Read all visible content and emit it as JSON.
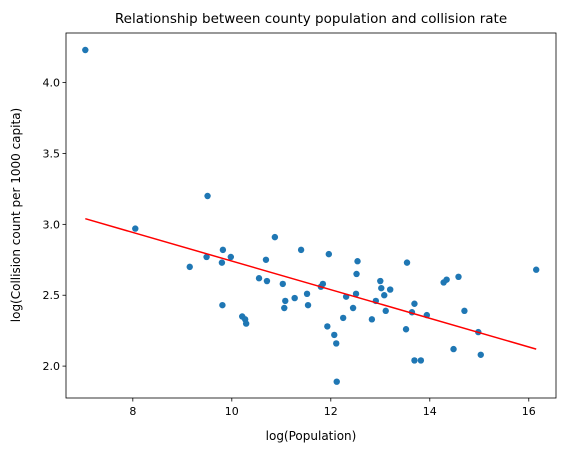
{
  "chart_data": {
    "type": "scatter",
    "title": "Relationship between county population and collision rate",
    "xlabel": "log(Population)",
    "ylabel": "log(Collision count per 1000 capita)",
    "xlim": [
      6.65,
      16.55
    ],
    "ylim": [
      1.775,
      4.35
    ],
    "xticks": [
      8,
      10,
      12,
      14,
      16
    ],
    "yticks": [
      2.0,
      2.5,
      3.0,
      3.5,
      4.0
    ],
    "xtick_labels": [
      "8",
      "10",
      "12",
      "14",
      "16"
    ],
    "ytick_labels": [
      "2.0",
      "2.5",
      "3.0",
      "3.5",
      "4.0"
    ],
    "grid": false,
    "legend": "none",
    "series": [
      {
        "kind": "scatter",
        "color": "#1f77b4",
        "points": [
          [
            7.04,
            4.23
          ],
          [
            8.05,
            2.97
          ],
          [
            9.15,
            2.7
          ],
          [
            9.49,
            2.77
          ],
          [
            9.51,
            3.2
          ],
          [
            9.8,
            2.73
          ],
          [
            9.82,
            2.82
          ],
          [
            9.81,
            2.43
          ],
          [
            9.98,
            2.77
          ],
          [
            10.21,
            2.35
          ],
          [
            10.27,
            2.33
          ],
          [
            10.29,
            2.3
          ],
          [
            10.55,
            2.62
          ],
          [
            10.69,
            2.75
          ],
          [
            10.71,
            2.6
          ],
          [
            10.87,
            2.91
          ],
          [
            11.03,
            2.58
          ],
          [
            11.06,
            2.41
          ],
          [
            11.08,
            2.46
          ],
          [
            11.27,
            2.48
          ],
          [
            11.4,
            2.82
          ],
          [
            11.52,
            2.51
          ],
          [
            11.54,
            2.43
          ],
          [
            11.8,
            2.56
          ],
          [
            11.84,
            2.58
          ],
          [
            11.93,
            2.28
          ],
          [
            11.96,
            2.79
          ],
          [
            12.07,
            2.22
          ],
          [
            12.11,
            2.16
          ],
          [
            12.12,
            1.89
          ],
          [
            12.25,
            2.34
          ],
          [
            12.31,
            2.49
          ],
          [
            12.45,
            2.41
          ],
          [
            12.51,
            2.51
          ],
          [
            12.52,
            2.65
          ],
          [
            12.54,
            2.74
          ],
          [
            12.83,
            2.33
          ],
          [
            12.91,
            2.46
          ],
          [
            13.0,
            2.6
          ],
          [
            13.02,
            2.55
          ],
          [
            13.08,
            2.5
          ],
          [
            13.11,
            2.39
          ],
          [
            13.2,
            2.54
          ],
          [
            13.52,
            2.26
          ],
          [
            13.54,
            2.73
          ],
          [
            13.64,
            2.38
          ],
          [
            13.69,
            2.04
          ],
          [
            13.69,
            2.44
          ],
          [
            13.82,
            2.04
          ],
          [
            13.94,
            2.36
          ],
          [
            14.28,
            2.59
          ],
          [
            14.34,
            2.61
          ],
          [
            14.48,
            2.12
          ],
          [
            14.58,
            2.63
          ],
          [
            14.7,
            2.39
          ],
          [
            14.98,
            2.24
          ],
          [
            15.03,
            2.08
          ],
          [
            16.15,
            2.68
          ]
        ]
      },
      {
        "kind": "line",
        "color": "#ff0000",
        "points": [
          [
            7.04,
            3.04
          ],
          [
            16.15,
            2.12
          ]
        ]
      }
    ]
  }
}
